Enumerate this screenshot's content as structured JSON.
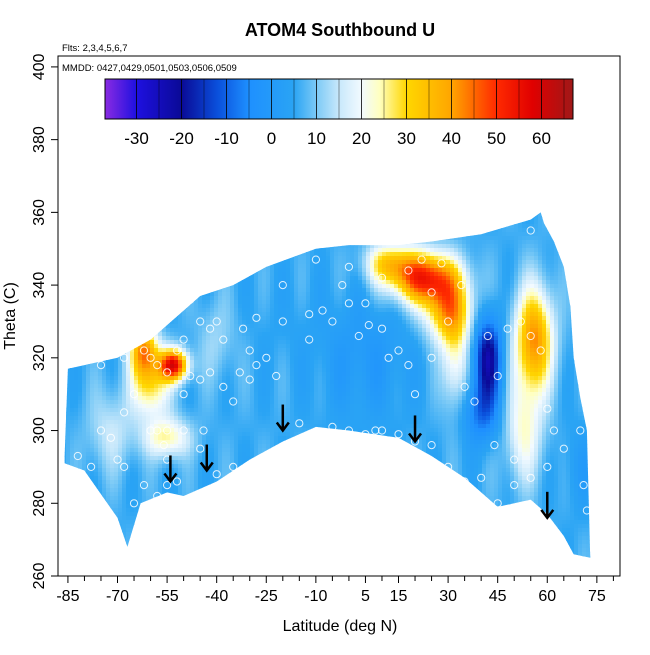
{
  "chart_data": {
    "type": "heatmap",
    "title": "ATOM4 Southbound U",
    "subtitle_flights": "Flts: 2,3,4,5,6,7",
    "subtitle_dates": "MMDD: 0427,0429,0501,0503,0506,0509",
    "xlabel": "Latitude (deg N)",
    "ylabel": "Theta (C)",
    "xlim": [
      -88,
      82
    ],
    "ylim": [
      260,
      403
    ],
    "x_ticks": [
      -85,
      -70,
      -55,
      -40,
      -25,
      -10,
      5,
      15,
      30,
      45,
      60,
      75
    ],
    "x_minor_ticks": [
      -80,
      -75,
      -65,
      -60,
      -50,
      -45,
      -35,
      -30,
      -20,
      -15,
      -5,
      0,
      10,
      20,
      25,
      35,
      40,
      50,
      55,
      65,
      70,
      80
    ],
    "y_ticks": [
      260,
      280,
      300,
      320,
      340,
      360,
      380,
      400
    ],
    "colorbar": {
      "min": -37,
      "max": 67,
      "ticks": [
        -30,
        -20,
        -10,
        0,
        10,
        20,
        30,
        40,
        50,
        60
      ],
      "stops": [
        {
          "v": -37,
          "c": "#8a2be2"
        },
        {
          "v": -30,
          "c": "#1e10e0"
        },
        {
          "v": -20,
          "c": "#0a0a96"
        },
        {
          "v": -12,
          "c": "#0a50dc"
        },
        {
          "v": -5,
          "c": "#1e90ff"
        },
        {
          "v": 5,
          "c": "#2aa4f4"
        },
        {
          "v": 10,
          "c": "#7ccaf6"
        },
        {
          "v": 15,
          "c": "#c8e8fb"
        },
        {
          "v": 20,
          "c": "#f2faff"
        },
        {
          "v": 24,
          "c": "#ffffc0"
        },
        {
          "v": 30,
          "c": "#ffd700"
        },
        {
          "v": 40,
          "c": "#ffa500"
        },
        {
          "v": 50,
          "c": "#ff2a00"
        },
        {
          "v": 58,
          "c": "#e00000"
        },
        {
          "v": 67,
          "c": "#a01818"
        }
      ]
    },
    "domain_top": [
      [
        -86,
        293
      ],
      [
        -85,
        317
      ],
      [
        -80,
        318
      ],
      [
        -70,
        320
      ],
      [
        -60,
        325
      ],
      [
        -45,
        337
      ],
      [
        -35,
        340
      ],
      [
        -25,
        345
      ],
      [
        -10,
        350
      ],
      [
        0,
        351
      ],
      [
        15,
        351
      ],
      [
        25,
        352
      ],
      [
        40,
        354
      ],
      [
        55,
        358
      ],
      [
        58,
        360
      ]
    ],
    "domain_bottom": [
      [
        -86,
        291
      ],
      [
        -80,
        289
      ],
      [
        -70,
        276
      ],
      [
        -67,
        268
      ],
      [
        -63,
        280
      ],
      [
        -55,
        283
      ],
      [
        -50,
        282
      ],
      [
        -40,
        286
      ],
      [
        -30,
        292
      ],
      [
        -20,
        297
      ],
      [
        -10,
        301
      ],
      [
        0,
        300
      ],
      [
        15,
        298
      ],
      [
        25,
        293
      ],
      [
        35,
        287
      ],
      [
        45,
        279
      ],
      [
        55,
        281
      ],
      [
        60,
        277
      ],
      [
        65,
        271
      ],
      [
        68,
        266
      ],
      [
        73,
        265
      ]
    ],
    "domain_right": [
      [
        58,
        360
      ],
      [
        59,
        357
      ],
      [
        62,
        352
      ],
      [
        65,
        345
      ],
      [
        67,
        334
      ],
      [
        68,
        320
      ],
      [
        70,
        309
      ],
      [
        72,
        300
      ],
      [
        73,
        265
      ]
    ],
    "field_features": [
      {
        "lat": 23,
        "theta": 342,
        "value": 50,
        "sx": 7,
        "sy": 5
      },
      {
        "lat": 30,
        "theta": 333,
        "value": 35,
        "sx": 5,
        "sy": 6
      },
      {
        "lat": 12,
        "theta": 346,
        "value": 28,
        "sx": 5,
        "sy": 4
      },
      {
        "lat": 32,
        "theta": 320,
        "value": 22,
        "sx": 3,
        "sy": 10
      },
      {
        "lat": -53,
        "theta": 318,
        "value": 55,
        "sx": 3,
        "sy": 3
      },
      {
        "lat": -62,
        "theta": 322,
        "value": 40,
        "sx": 3,
        "sy": 5
      },
      {
        "lat": -60,
        "theta": 312,
        "value": 28,
        "sx": 4,
        "sy": 6
      },
      {
        "lat": -55,
        "theta": 298,
        "value": 25,
        "sx": 5,
        "sy": 4
      },
      {
        "lat": 56,
        "theta": 325,
        "value": 42,
        "sx": 4,
        "sy": 10
      },
      {
        "lat": 53,
        "theta": 300,
        "value": 22,
        "sx": 4,
        "sy": 10
      },
      {
        "lat": 42,
        "theta": 320,
        "value": -22,
        "sx": 3,
        "sy": 8
      },
      {
        "lat": 40,
        "theta": 305,
        "value": -8,
        "sx": 4,
        "sy": 6
      },
      {
        "lat": -72,
        "theta": 300,
        "value": 15,
        "sx": 5,
        "sy": 8
      },
      {
        "lat": -40,
        "theta": 325,
        "value": 12,
        "sx": 4,
        "sy": 8
      },
      {
        "lat": -20,
        "theta": 330,
        "value": 5,
        "sx": 8,
        "sy": 10
      },
      {
        "lat": 5,
        "theta": 320,
        "value": 0,
        "sx": 10,
        "sy": 12
      },
      {
        "lat": 70,
        "theta": 290,
        "value": 2,
        "sx": 4,
        "sy": 8
      }
    ],
    "field_background": 6,
    "observations": [
      [
        -75,
        300
      ],
      [
        -72,
        298
      ],
      [
        -70,
        292
      ],
      [
        -65,
        280
      ],
      [
        -62,
        285
      ],
      [
        -58,
        282
      ],
      [
        -55,
        285
      ],
      [
        -52,
        286
      ],
      [
        -68,
        290
      ],
      [
        -60,
        300
      ],
      [
        -56,
        296
      ],
      [
        -50,
        300
      ],
      [
        -48,
        315
      ],
      [
        -45,
        314
      ],
      [
        -42,
        316
      ],
      [
        -38,
        312
      ],
      [
        -35,
        308
      ],
      [
        -33,
        316
      ],
      [
        -30,
        314
      ],
      [
        -28,
        318
      ],
      [
        -25,
        320
      ],
      [
        -22,
        315
      ],
      [
        -60,
        320
      ],
      [
        -58,
        318
      ],
      [
        -55,
        316
      ],
      [
        -52,
        322
      ],
      [
        -50,
        325
      ],
      [
        -48,
        336
      ],
      [
        -45,
        330
      ],
      [
        -42,
        328
      ],
      [
        -38,
        325
      ],
      [
        -32,
        328
      ],
      [
        -28,
        331
      ],
      [
        -20,
        330
      ],
      [
        -12,
        332
      ],
      [
        -8,
        333
      ],
      [
        -5,
        330
      ],
      [
        0,
        335
      ],
      [
        3,
        326
      ],
      [
        6,
        329
      ],
      [
        10,
        328
      ],
      [
        12,
        320
      ],
      [
        15,
        322
      ],
      [
        18,
        318
      ],
      [
        -5,
        301
      ],
      [
        0,
        300
      ],
      [
        5,
        299
      ],
      [
        10,
        300
      ],
      [
        15,
        299
      ],
      [
        20,
        297
      ],
      [
        25,
        296
      ],
      [
        30,
        290
      ],
      [
        35,
        286
      ],
      [
        40,
        287
      ],
      [
        45,
        280
      ],
      [
        50,
        285
      ],
      [
        55,
        287
      ],
      [
        60,
        290
      ],
      [
        -10,
        347
      ],
      [
        0,
        345
      ],
      [
        10,
        342
      ],
      [
        18,
        344
      ],
      [
        25,
        338
      ],
      [
        30,
        330
      ],
      [
        35,
        312
      ],
      [
        38,
        308
      ],
      [
        42,
        326
      ],
      [
        45,
        315
      ],
      [
        48,
        328
      ],
      [
        52,
        330
      ],
      [
        55,
        326
      ],
      [
        58,
        322
      ],
      [
        60,
        306
      ],
      [
        62,
        300
      ],
      [
        65,
        295
      ],
      [
        70,
        300
      ],
      [
        71,
        285
      ],
      [
        72,
        278
      ],
      [
        55,
        355
      ],
      [
        -65,
        310
      ],
      [
        -62,
        322
      ],
      [
        -68,
        305
      ],
      [
        -78,
        290
      ],
      [
        -82,
        293
      ],
      [
        -80,
        285
      ],
      [
        -45,
        295
      ],
      [
        -40,
        288
      ],
      [
        -35,
        290
      ],
      [
        -55,
        300
      ],
      [
        -50,
        310
      ],
      [
        -55,
        292
      ],
      [
        22,
        347
      ],
      [
        28,
        346
      ],
      [
        34,
        340
      ],
      [
        -15,
        302
      ],
      [
        5,
        335
      ],
      [
        -40,
        330
      ],
      [
        8,
        300
      ],
      [
        -2,
        340
      ],
      [
        44,
        296
      ],
      [
        50,
        292
      ],
      [
        -75,
        318
      ],
      [
        -68,
        320
      ],
      [
        -30,
        322
      ],
      [
        -20,
        340
      ],
      [
        -12,
        325
      ],
      [
        20,
        310
      ],
      [
        25,
        320
      ],
      [
        -60,
        276
      ],
      [
        -58,
        300
      ],
      [
        -44,
        300
      ]
    ],
    "arrows": [
      {
        "lat": -54,
        "theta": 286
      },
      {
        "lat": -43,
        "theta": 289
      },
      {
        "lat": -20,
        "theta": 300
      },
      {
        "lat": 20,
        "theta": 297
      },
      {
        "lat": 60,
        "theta": 276
      }
    ]
  }
}
